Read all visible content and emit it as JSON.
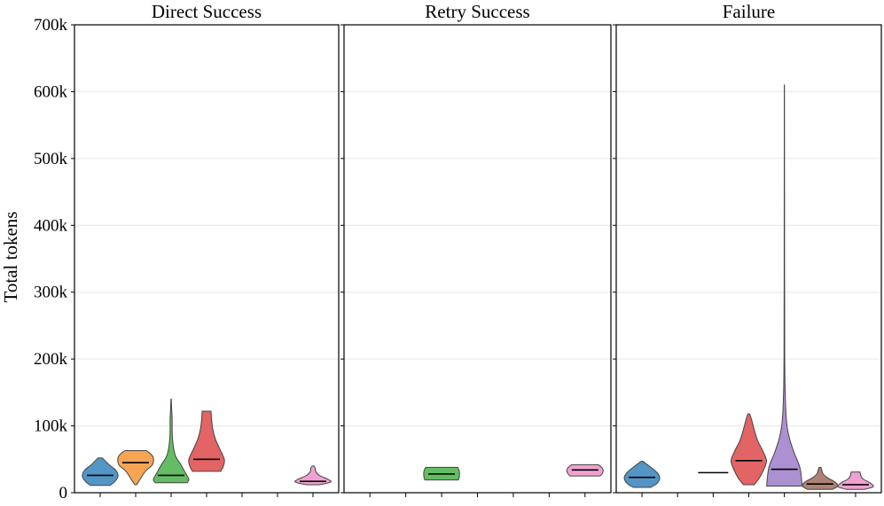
{
  "chart_data": {
    "type": "violin",
    "ylabel": "Total tokens",
    "ylim": [
      0,
      700000
    ],
    "yticks": [
      0,
      100000,
      200000,
      300000,
      400000,
      500000,
      600000,
      700000
    ],
    "ytick_labels": [
      "0",
      "100k",
      "200k",
      "300k",
      "400k",
      "500k",
      "600k",
      "700k"
    ],
    "grid": "horizontal",
    "series_colors": [
      "#4a90c2",
      "#f7a04a",
      "#5cb85c",
      "#e05c5c",
      "#a98ad0",
      "#a77b6b",
      "#ef9ccf"
    ],
    "panels": [
      {
        "title": "Direct Success",
        "violins": [
          {
            "slot": 0,
            "min": 11000,
            "max": 52000,
            "median": 26000,
            "profile": [
              [
                11000,
                0.55
              ],
              [
                16000,
                0.8
              ],
              [
                24000,
                1.0
              ],
              [
                33000,
                0.9
              ],
              [
                42000,
                0.5
              ],
              [
                52000,
                0.12
              ]
            ]
          },
          {
            "slot": 1,
            "min": 12000,
            "max": 63000,
            "median": 45000,
            "profile": [
              [
                12000,
                0.05
              ],
              [
                20000,
                0.25
              ],
              [
                32000,
                0.55
              ],
              [
                42000,
                0.95
              ],
              [
                52000,
                1.0
              ],
              [
                58000,
                0.85
              ],
              [
                63000,
                0.6
              ]
            ]
          },
          {
            "slot": 2,
            "min": 15000,
            "max": 140000,
            "median": 26000,
            "profile": [
              [
                15000,
                0.9
              ],
              [
                20000,
                1.0
              ],
              [
                30000,
                0.8
              ],
              [
                42000,
                0.55
              ],
              [
                55000,
                0.25
              ],
              [
                70000,
                0.12
              ],
              [
                90000,
                0.06
              ],
              [
                110000,
                0.06
              ],
              [
                125000,
                0.03
              ],
              [
                140000,
                0.01
              ]
            ]
          },
          {
            "slot": 3,
            "min": 32000,
            "max": 122000,
            "median": 50000,
            "profile": [
              [
                32000,
                0.8
              ],
              [
                40000,
                0.95
              ],
              [
                50000,
                1.0
              ],
              [
                65000,
                0.75
              ],
              [
                80000,
                0.5
              ],
              [
                95000,
                0.35
              ],
              [
                110000,
                0.28
              ],
              [
                122000,
                0.25
              ]
            ]
          },
          {
            "slot": 6,
            "min": 12000,
            "max": 40000,
            "median": 17000,
            "profile": [
              [
                12000,
                0.4
              ],
              [
                16000,
                1.0
              ],
              [
                20000,
                0.85
              ],
              [
                26000,
                0.35
              ],
              [
                32000,
                0.15
              ],
              [
                37000,
                0.12
              ],
              [
                40000,
                0.05
              ]
            ]
          }
        ]
      },
      {
        "title": "Retry Success",
        "violins": [
          {
            "slot": 2,
            "min": 19000,
            "max": 38000,
            "median": 28000,
            "profile": [
              [
                19000,
                0.95
              ],
              [
                24000,
                1.0
              ],
              [
                32000,
                1.0
              ],
              [
                38000,
                0.9
              ]
            ]
          },
          {
            "slot": 6,
            "min": 25000,
            "max": 42000,
            "median": 34000,
            "profile": [
              [
                25000,
                0.85
              ],
              [
                30000,
                1.0
              ],
              [
                36000,
                1.0
              ],
              [
                42000,
                0.75
              ]
            ]
          }
        ]
      },
      {
        "title": "Failure",
        "violins": [
          {
            "slot": 0,
            "min": 8000,
            "max": 47000,
            "median": 23000,
            "profile": [
              [
                8000,
                0.5
              ],
              [
                14000,
                0.85
              ],
              [
                22000,
                1.0
              ],
              [
                30000,
                0.85
              ],
              [
                38000,
                0.5
              ],
              [
                44000,
                0.2
              ],
              [
                47000,
                0.05
              ]
            ]
          },
          {
            "slot": 2,
            "min": 30000,
            "max": 30000,
            "median": 30000,
            "profile": []
          },
          {
            "slot": 3,
            "min": 12000,
            "max": 118000,
            "median": 48000,
            "profile": [
              [
                12000,
                0.3
              ],
              [
                22000,
                0.6
              ],
              [
                35000,
                0.85
              ],
              [
                48000,
                1.0
              ],
              [
                62000,
                0.8
              ],
              [
                78000,
                0.5
              ],
              [
                95000,
                0.3
              ],
              [
                110000,
                0.15
              ],
              [
                118000,
                0.05
              ]
            ]
          },
          {
            "slot": 4,
            "min": 10000,
            "max": 610000,
            "median": 35000,
            "profile": [
              [
                10000,
                1.0
              ],
              [
                25000,
                0.95
              ],
              [
                40000,
                0.85
              ],
              [
                60000,
                0.55
              ],
              [
                80000,
                0.3
              ],
              [
                100000,
                0.15
              ],
              [
                130000,
                0.07
              ],
              [
                200000,
                0.02
              ],
              [
                400000,
                0.01
              ],
              [
                610000,
                0.005
              ]
            ]
          },
          {
            "slot": 5,
            "min": 5000,
            "max": 38000,
            "median": 13000,
            "profile": [
              [
                5000,
                0.7
              ],
              [
                10000,
                1.0
              ],
              [
                16000,
                0.85
              ],
              [
                22000,
                0.45
              ],
              [
                28000,
                0.18
              ],
              [
                34000,
                0.1
              ],
              [
                38000,
                0.05
              ]
            ]
          },
          {
            "slot": 6,
            "min": 5000,
            "max": 31000,
            "median": 12000,
            "profile": [
              [
                5000,
                0.5
              ],
              [
                9000,
                1.0
              ],
              [
                15000,
                0.8
              ],
              [
                20000,
                0.45
              ],
              [
                25000,
                0.3
              ],
              [
                31000,
                0.25
              ]
            ]
          }
        ]
      }
    ]
  }
}
